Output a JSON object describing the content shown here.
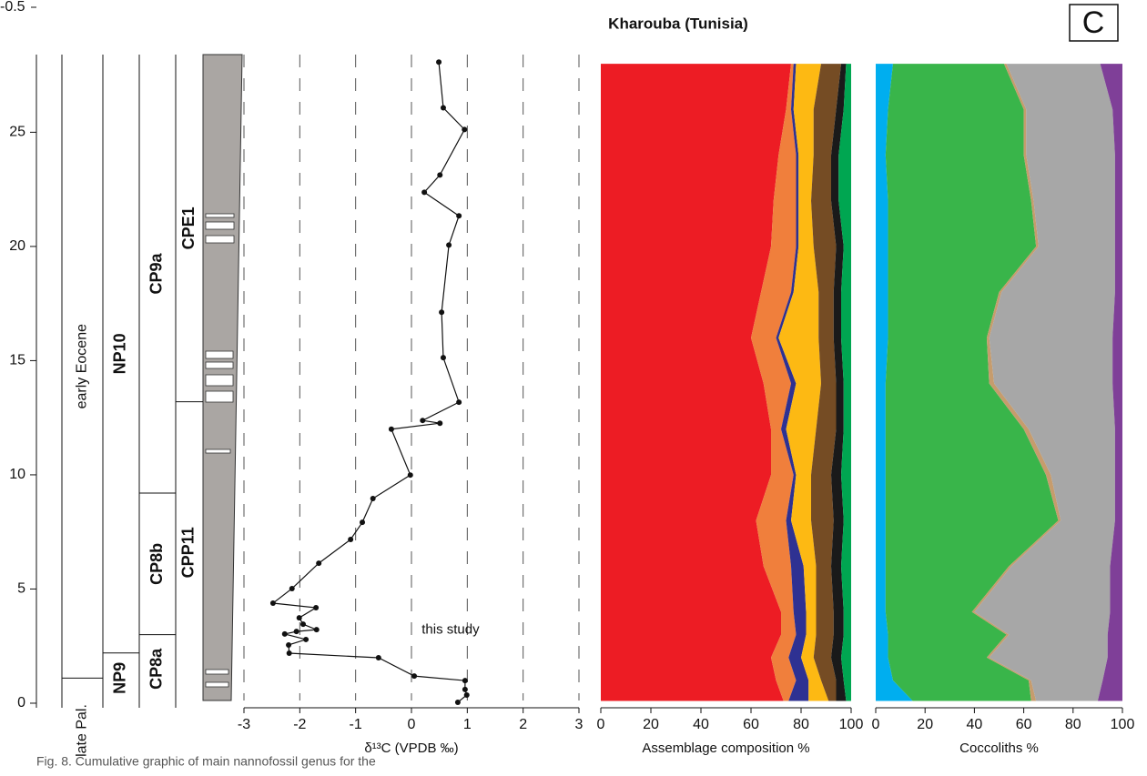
{
  "title": "Kharouba (Tunisia)",
  "panel_label": "C",
  "stray_tick_label": "-0.5",
  "caption": "Fig. 8. Cumulative graphic of main nannofossil genus for the",
  "stratigraphy": [
    {
      "zones": [
        {
          "label": "late Pal.",
          "from": 0,
          "to": 1.1
        },
        {
          "label": "early Eocene",
          "from": 1.1,
          "to": 28.4
        }
      ]
    },
    {
      "zones": [
        {
          "label": "NP9",
          "from": 0,
          "to": 2.2
        },
        {
          "label": "NP10",
          "from": 2.2,
          "to": 28.4
        }
      ]
    },
    {
      "zones": [
        {
          "label": "CP8a",
          "from": 0,
          "to": 3.0
        },
        {
          "label": "CP8b",
          "from": 3.0,
          "to": 9.2
        },
        {
          "label": "CP9a",
          "from": 9.2,
          "to": 28.4
        }
      ]
    },
    {
      "zones": [
        {
          "label": "CPP11",
          "from": 0,
          "to": 13.2
        },
        {
          "label": "CPE1",
          "from": 13.2,
          "to": 28.4
        }
      ]
    }
  ],
  "chart_data": [
    {
      "type": "line",
      "xlabel": "δ¹³C (VPDB ‰)",
      "annotation": "this study",
      "color": "#111111",
      "xlim": [
        -3,
        3
      ],
      "xticks": [
        -3,
        -2,
        -1,
        0,
        1,
        2,
        3
      ],
      "grid": true,
      "ylim": [
        -0.2,
        28.6
      ],
      "yticks": [
        0,
        5,
        10,
        15,
        20,
        25
      ],
      "depth": [
        0.04,
        0.36,
        0.6,
        0.99,
        1.19,
        1.99,
        2.19,
        2.55,
        2.79,
        3.03,
        3.14,
        3.22,
        3.46,
        3.74,
        4.18,
        4.38,
        5.02,
        6.13,
        7.17,
        7.92,
        8.96,
        9.99,
        12.0,
        12.26,
        12.38,
        13.18,
        15.13,
        17.12,
        20.06,
        21.34,
        22.37,
        23.13,
        25.12,
        26.07,
        28.07
      ],
      "values": [
        0.83,
        0.99,
        0.96,
        0.96,
        0.05,
        -0.59,
        -2.19,
        -2.2,
        -1.89,
        -2.27,
        -2.06,
        -1.7,
        -1.94,
        -2.01,
        -1.71,
        -2.48,
        -2.14,
        -1.66,
        -1.09,
        -0.88,
        -0.69,
        -0.02,
        -0.36,
        0.51,
        0.2,
        0.85,
        0.57,
        0.54,
        0.67,
        0.85,
        0.23,
        0.51,
        0.95,
        0.57,
        0.49
      ]
    },
    {
      "type": "stacked_area",
      "xlabel": "Assemblage composition %",
      "xlim": [
        0,
        100
      ],
      "xticks": [
        0,
        20,
        40,
        60,
        80,
        100
      ],
      "depth": [
        0.1,
        1,
        2,
        3,
        4,
        6,
        8,
        10,
        12,
        14,
        16,
        18,
        20,
        22,
        24,
        26,
        28
      ],
      "series": [
        {
          "color": "#ed1c24",
          "values": [
            73,
            70,
            68,
            72,
            72,
            65,
            62,
            68,
            68,
            65,
            60,
            64,
            68,
            69,
            71,
            74,
            76
          ]
        },
        {
          "color": "#f07f3c",
          "values": [
            2,
            8,
            7,
            6,
            5,
            11,
            12,
            9,
            4,
            11,
            10,
            12,
            10,
            9,
            7,
            2,
            1
          ]
        },
        {
          "color": "#2e3192",
          "values": [
            8,
            5,
            5,
            4,
            5,
            5,
            2,
            1,
            2,
            2,
            1,
            1,
            1,
            1,
            1,
            1,
            1
          ]
        },
        {
          "color": "#fdb913",
          "values": [
            8,
            5,
            5,
            4,
            4,
            5,
            8,
            6,
            12,
            10,
            16,
            10,
            6,
            5,
            6,
            8,
            10
          ]
        },
        {
          "color": "#754c24",
          "values": [
            3,
            6,
            7,
            7,
            7,
            6,
            9,
            8,
            8,
            6,
            6,
            6,
            9,
            8,
            7,
            9,
            8
          ]
        },
        {
          "color": "#1a1a1a",
          "values": [
            4,
            3,
            4,
            4,
            4,
            4,
            4,
            4,
            3,
            3,
            3,
            3,
            3,
            3,
            3,
            3,
            2
          ]
        },
        {
          "color": "#00a651",
          "values": [
            2,
            3,
            4,
            3,
            3,
            4,
            3,
            4,
            3,
            3,
            4,
            4,
            3,
            5,
            5,
            3,
            2
          ]
        }
      ]
    },
    {
      "type": "stacked_area",
      "xlabel": "Coccoliths %",
      "xlim": [
        0,
        100
      ],
      "xticks": [
        0,
        20,
        40,
        60,
        80,
        100
      ],
      "depth": [
        0.1,
        1,
        2,
        3,
        4,
        6,
        8,
        10,
        12,
        14,
        16,
        18,
        20,
        22,
        24,
        26,
        28
      ],
      "series": [
        {
          "color": "#00aeef",
          "values": [
            15,
            7,
            5,
            5,
            4,
            4,
            4,
            4,
            4,
            4,
            5,
            5,
            5,
            5,
            4,
            5,
            7
          ]
        },
        {
          "color": "#39b54a",
          "values": [
            48,
            55,
            40,
            48,
            35,
            50,
            70,
            65,
            56,
            42,
            40,
            45,
            60,
            58,
            56,
            55,
            45
          ]
        },
        {
          "color": "#c69c6d",
          "values": [
            2,
            1,
            1,
            1,
            1,
            1,
            1,
            2,
            2,
            2,
            1,
            1,
            1,
            1,
            1,
            1,
            1
          ]
        },
        {
          "color": "#a7a7a7",
          "values": [
            25,
            29,
            48,
            40,
            55,
            40,
            22,
            26,
            35,
            48,
            50,
            46,
            31,
            33,
            36,
            35,
            38
          ]
        },
        {
          "color": "#7f3f98",
          "values": [
            10,
            8,
            6,
            6,
            5,
            5,
            3,
            3,
            3,
            4,
            4,
            3,
            3,
            3,
            3,
            4,
            9
          ]
        }
      ]
    }
  ]
}
